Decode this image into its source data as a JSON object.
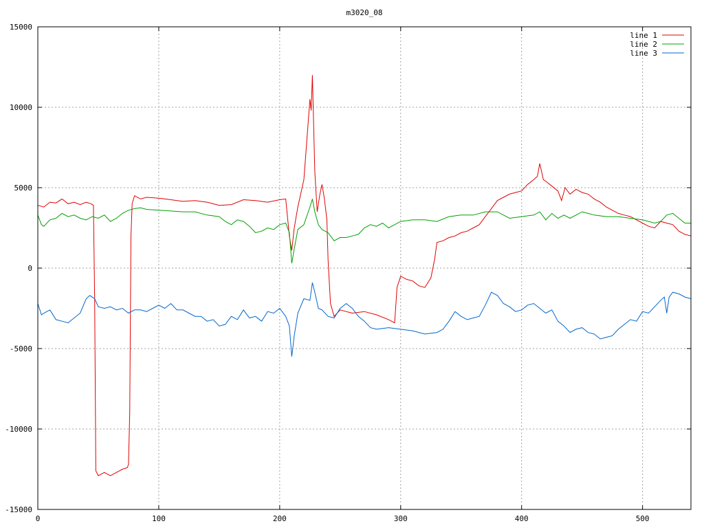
{
  "chart_data": {
    "type": "line",
    "title": "m3020_08",
    "xlabel": "",
    "ylabel": "",
    "xlim": [
      0,
      540
    ],
    "ylim": [
      -15000,
      15000
    ],
    "xticks": [
      0,
      100,
      200,
      300,
      400,
      500
    ],
    "yticks": [
      -15000,
      -10000,
      -5000,
      0,
      5000,
      10000,
      15000
    ],
    "grid": true,
    "legend_position": "top-right",
    "series": [
      {
        "name": "line 1",
        "color": "#e00000",
        "points": [
          [
            0,
            3900
          ],
          [
            5,
            3800
          ],
          [
            10,
            4100
          ],
          [
            15,
            4050
          ],
          [
            20,
            4300
          ],
          [
            25,
            4000
          ],
          [
            30,
            4100
          ],
          [
            35,
            3950
          ],
          [
            40,
            4100
          ],
          [
            44,
            4000
          ],
          [
            46,
            3900
          ],
          [
            47,
            -2000
          ],
          [
            48,
            -12600
          ],
          [
            50,
            -12900
          ],
          [
            55,
            -12700
          ],
          [
            60,
            -12900
          ],
          [
            65,
            -12700
          ],
          [
            70,
            -12500
          ],
          [
            74,
            -12400
          ],
          [
            75,
            -12200
          ],
          [
            76,
            -9000
          ],
          [
            77,
            2000
          ],
          [
            78,
            4000
          ],
          [
            80,
            4500
          ],
          [
            85,
            4300
          ],
          [
            90,
            4400
          ],
          [
            100,
            4350
          ],
          [
            110,
            4250
          ],
          [
            120,
            4150
          ],
          [
            130,
            4200
          ],
          [
            140,
            4100
          ],
          [
            150,
            3900
          ],
          [
            160,
            3950
          ],
          [
            170,
            4250
          ],
          [
            180,
            4200
          ],
          [
            190,
            4100
          ],
          [
            200,
            4250
          ],
          [
            205,
            4300
          ],
          [
            208,
            2000
          ],
          [
            210,
            1100
          ],
          [
            212,
            2500
          ],
          [
            215,
            3800
          ],
          [
            220,
            5500
          ],
          [
            223,
            8500
          ],
          [
            225,
            10500
          ],
          [
            226,
            9800
          ],
          [
            227,
            12000
          ],
          [
            229,
            6000
          ],
          [
            231,
            3500
          ],
          [
            233,
            4500
          ],
          [
            235,
            5200
          ],
          [
            237,
            4300
          ],
          [
            239,
            3000
          ],
          [
            240,
            500
          ],
          [
            242,
            -2200
          ],
          [
            245,
            -3000
          ],
          [
            250,
            -2600
          ],
          [
            260,
            -2800
          ],
          [
            270,
            -2700
          ],
          [
            280,
            -2900
          ],
          [
            290,
            -3200
          ],
          [
            295,
            -3400
          ],
          [
            297,
            -1200
          ],
          [
            300,
            -500
          ],
          [
            305,
            -700
          ],
          [
            310,
            -800
          ],
          [
            315,
            -1100
          ],
          [
            320,
            -1200
          ],
          [
            325,
            -600
          ],
          [
            328,
            500
          ],
          [
            330,
            1600
          ],
          [
            335,
            1700
          ],
          [
            340,
            1900
          ],
          [
            345,
            2000
          ],
          [
            350,
            2200
          ],
          [
            355,
            2300
          ],
          [
            360,
            2500
          ],
          [
            365,
            2700
          ],
          [
            370,
            3200
          ],
          [
            375,
            3700
          ],
          [
            380,
            4200
          ],
          [
            385,
            4400
          ],
          [
            390,
            4600
          ],
          [
            395,
            4700
          ],
          [
            400,
            4800
          ],
          [
            405,
            5200
          ],
          [
            410,
            5500
          ],
          [
            413,
            5700
          ],
          [
            415,
            6500
          ],
          [
            418,
            5500
          ],
          [
            420,
            5400
          ],
          [
            425,
            5100
          ],
          [
            430,
            4800
          ],
          [
            433,
            4200
          ],
          [
            436,
            5000
          ],
          [
            440,
            4600
          ],
          [
            445,
            4900
          ],
          [
            450,
            4700
          ],
          [
            455,
            4600
          ],
          [
            460,
            4300
          ],
          [
            465,
            4100
          ],
          [
            470,
            3800
          ],
          [
            475,
            3600
          ],
          [
            480,
            3400
          ],
          [
            485,
            3300
          ],
          [
            490,
            3200
          ],
          [
            495,
            3000
          ],
          [
            500,
            2800
          ],
          [
            505,
            2600
          ],
          [
            510,
            2500
          ],
          [
            515,
            2900
          ],
          [
            520,
            2800
          ],
          [
            525,
            2700
          ],
          [
            530,
            2300
          ],
          [
            535,
            2100
          ],
          [
            540,
            2000
          ]
        ]
      },
      {
        "name": "line 2",
        "color": "#00a000",
        "points": [
          [
            0,
            3300
          ],
          [
            3,
            2700
          ],
          [
            5,
            2600
          ],
          [
            10,
            3000
          ],
          [
            15,
            3100
          ],
          [
            20,
            3400
          ],
          [
            25,
            3200
          ],
          [
            30,
            3300
          ],
          [
            35,
            3100
          ],
          [
            40,
            3000
          ],
          [
            45,
            3200
          ],
          [
            50,
            3100
          ],
          [
            55,
            3300
          ],
          [
            60,
            2900
          ],
          [
            65,
            3100
          ],
          [
            70,
            3400
          ],
          [
            75,
            3600
          ],
          [
            80,
            3700
          ],
          [
            85,
            3750
          ],
          [
            90,
            3650
          ],
          [
            100,
            3600
          ],
          [
            110,
            3550
          ],
          [
            120,
            3500
          ],
          [
            130,
            3500
          ],
          [
            140,
            3300
          ],
          [
            150,
            3200
          ],
          [
            155,
            2900
          ],
          [
            160,
            2700
          ],
          [
            165,
            3000
          ],
          [
            170,
            2900
          ],
          [
            175,
            2600
          ],
          [
            180,
            2200
          ],
          [
            185,
            2300
          ],
          [
            190,
            2500
          ],
          [
            195,
            2400
          ],
          [
            200,
            2700
          ],
          [
            205,
            2800
          ],
          [
            208,
            2200
          ],
          [
            210,
            300
          ],
          [
            212,
            1200
          ],
          [
            215,
            2400
          ],
          [
            220,
            2700
          ],
          [
            225,
            3800
          ],
          [
            227,
            4300
          ],
          [
            229,
            3500
          ],
          [
            232,
            2700
          ],
          [
            235,
            2400
          ],
          [
            240,
            2200
          ],
          [
            245,
            1700
          ],
          [
            250,
            1900
          ],
          [
            255,
            1900
          ],
          [
            260,
            2000
          ],
          [
            265,
            2100
          ],
          [
            270,
            2500
          ],
          [
            275,
            2700
          ],
          [
            280,
            2600
          ],
          [
            285,
            2800
          ],
          [
            290,
            2500
          ],
          [
            295,
            2700
          ],
          [
            300,
            2900
          ],
          [
            310,
            3000
          ],
          [
            320,
            3000
          ],
          [
            330,
            2900
          ],
          [
            340,
            3200
          ],
          [
            350,
            3300
          ],
          [
            360,
            3300
          ],
          [
            370,
            3500
          ],
          [
            380,
            3500
          ],
          [
            390,
            3100
          ],
          [
            400,
            3200
          ],
          [
            410,
            3300
          ],
          [
            415,
            3500
          ],
          [
            420,
            3000
          ],
          [
            425,
            3400
          ],
          [
            430,
            3100
          ],
          [
            435,
            3300
          ],
          [
            440,
            3100
          ],
          [
            445,
            3300
          ],
          [
            450,
            3500
          ],
          [
            455,
            3400
          ],
          [
            460,
            3300
          ],
          [
            470,
            3200
          ],
          [
            480,
            3200
          ],
          [
            490,
            3100
          ],
          [
            500,
            3000
          ],
          [
            510,
            2800
          ],
          [
            515,
            2900
          ],
          [
            520,
            3300
          ],
          [
            525,
            3400
          ],
          [
            530,
            3100
          ],
          [
            535,
            2800
          ],
          [
            540,
            2800
          ]
        ]
      },
      {
        "name": "line 3",
        "color": "#0066cc",
        "points": [
          [
            0,
            -2200
          ],
          [
            3,
            -2900
          ],
          [
            5,
            -2800
          ],
          [
            10,
            -2600
          ],
          [
            15,
            -3200
          ],
          [
            20,
            -3300
          ],
          [
            25,
            -3400
          ],
          [
            30,
            -3100
          ],
          [
            35,
            -2800
          ],
          [
            40,
            -1900
          ],
          [
            43,
            -1700
          ],
          [
            47,
            -1900
          ],
          [
            50,
            -2400
          ],
          [
            55,
            -2500
          ],
          [
            60,
            -2400
          ],
          [
            65,
            -2600
          ],
          [
            70,
            -2500
          ],
          [
            75,
            -2800
          ],
          [
            80,
            -2600
          ],
          [
            85,
            -2600
          ],
          [
            90,
            -2700
          ],
          [
            95,
            -2500
          ],
          [
            100,
            -2300
          ],
          [
            105,
            -2500
          ],
          [
            110,
            -2200
          ],
          [
            115,
            -2600
          ],
          [
            120,
            -2600
          ],
          [
            125,
            -2800
          ],
          [
            130,
            -3000
          ],
          [
            135,
            -3000
          ],
          [
            140,
            -3300
          ],
          [
            145,
            -3200
          ],
          [
            150,
            -3600
          ],
          [
            155,
            -3500
          ],
          [
            160,
            -3000
          ],
          [
            165,
            -3200
          ],
          [
            170,
            -2600
          ],
          [
            175,
            -3100
          ],
          [
            180,
            -3000
          ],
          [
            185,
            -3300
          ],
          [
            190,
            -2700
          ],
          [
            195,
            -2800
          ],
          [
            200,
            -2500
          ],
          [
            205,
            -3000
          ],
          [
            208,
            -3600
          ],
          [
            210,
            -5500
          ],
          [
            212,
            -4200
          ],
          [
            215,
            -2800
          ],
          [
            220,
            -1900
          ],
          [
            225,
            -2000
          ],
          [
            227,
            -900
          ],
          [
            229,
            -1500
          ],
          [
            232,
            -2500
          ],
          [
            235,
            -2600
          ],
          [
            240,
            -3000
          ],
          [
            245,
            -3100
          ],
          [
            250,
            -2500
          ],
          [
            255,
            -2200
          ],
          [
            260,
            -2500
          ],
          [
            265,
            -3000
          ],
          [
            270,
            -3300
          ],
          [
            275,
            -3700
          ],
          [
            280,
            -3800
          ],
          [
            290,
            -3700
          ],
          [
            300,
            -3800
          ],
          [
            310,
            -3900
          ],
          [
            320,
            -4100
          ],
          [
            330,
            -4000
          ],
          [
            335,
            -3800
          ],
          [
            340,
            -3300
          ],
          [
            345,
            -2700
          ],
          [
            350,
            -3000
          ],
          [
            355,
            -3200
          ],
          [
            360,
            -3100
          ],
          [
            365,
            -3000
          ],
          [
            370,
            -2300
          ],
          [
            375,
            -1500
          ],
          [
            380,
            -1700
          ],
          [
            385,
            -2200
          ],
          [
            390,
            -2400
          ],
          [
            395,
            -2700
          ],
          [
            400,
            -2600
          ],
          [
            405,
            -2300
          ],
          [
            410,
            -2200
          ],
          [
            415,
            -2500
          ],
          [
            420,
            -2800
          ],
          [
            425,
            -2600
          ],
          [
            430,
            -3300
          ],
          [
            435,
            -3600
          ],
          [
            440,
            -4000
          ],
          [
            445,
            -3800
          ],
          [
            450,
            -3700
          ],
          [
            455,
            -4000
          ],
          [
            460,
            -4100
          ],
          [
            465,
            -4400
          ],
          [
            470,
            -4300
          ],
          [
            475,
            -4200
          ],
          [
            480,
            -3800
          ],
          [
            485,
            -3500
          ],
          [
            490,
            -3200
          ],
          [
            495,
            -3300
          ],
          [
            500,
            -2700
          ],
          [
            505,
            -2800
          ],
          [
            510,
            -2400
          ],
          [
            515,
            -2000
          ],
          [
            518,
            -1800
          ],
          [
            520,
            -2800
          ],
          [
            522,
            -1800
          ],
          [
            525,
            -1500
          ],
          [
            530,
            -1600
          ],
          [
            535,
            -1800
          ],
          [
            540,
            -1900
          ]
        ]
      }
    ]
  }
}
